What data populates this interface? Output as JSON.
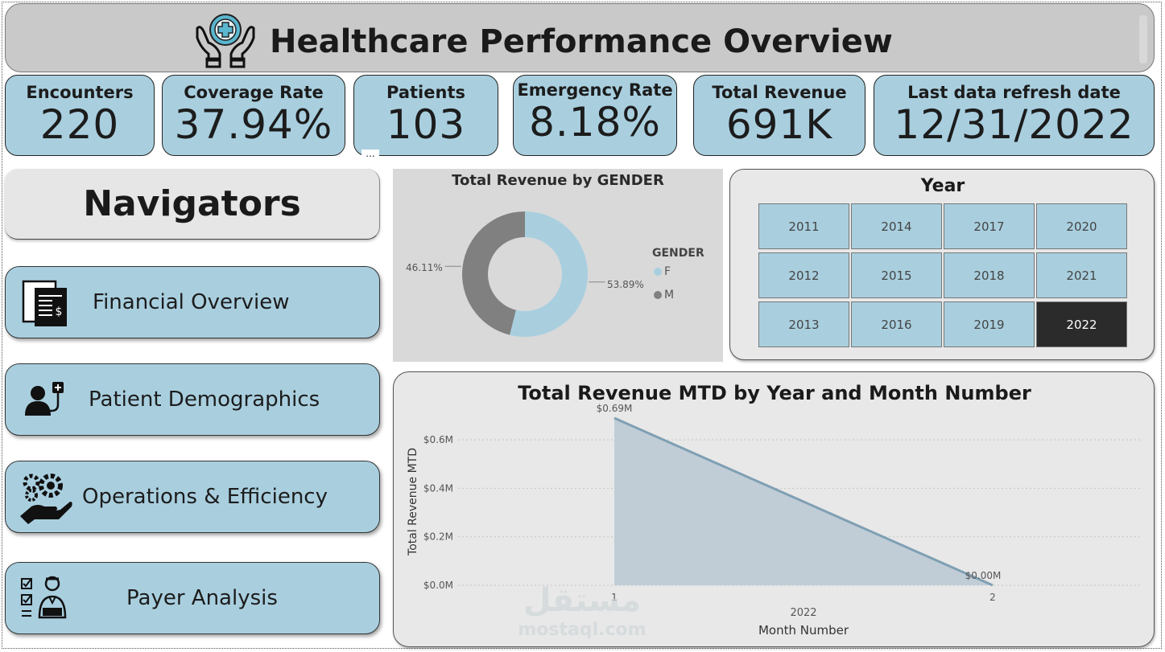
{
  "header": {
    "title": "Healthcare Performance Overview"
  },
  "kpis": {
    "encounters": {
      "label": "Encounters",
      "value": "220"
    },
    "coverage": {
      "label": "Coverage Rate",
      "value": "37.94%"
    },
    "patients": {
      "label": "Patients",
      "value": "103"
    },
    "emergency": {
      "label": "Emergency Rate",
      "value": "8.18%"
    },
    "revenue": {
      "label": "Total Revenue",
      "value": "691K"
    },
    "refresh": {
      "label": "Last data refresh date",
      "value": "12/31/2022"
    }
  },
  "more_options": "...",
  "nav": {
    "heading": "Navigators",
    "items": [
      {
        "label": "Financial Overview",
        "icon": "invoice-dollar-icon"
      },
      {
        "label": "Patient Demographics",
        "icon": "patient-stethoscope-icon"
      },
      {
        "label": "Operations & Efficiency",
        "icon": "gears-hand-icon"
      },
      {
        "label": "Payer Analysis",
        "icon": "checklist-person-icon"
      }
    ]
  },
  "year_slicer": {
    "title": "Year",
    "years": [
      "2011",
      "2014",
      "2017",
      "2020",
      "2012",
      "2015",
      "2018",
      "2021",
      "2013",
      "2016",
      "2019",
      "2022"
    ],
    "selected": "2022"
  },
  "colors": {
    "accent": "#a9cfdf",
    "female": "#a9cfdf",
    "male": "#808080",
    "area": "#c0cdd6",
    "line": "#7f9fb3",
    "selected": "#2b2b2b"
  },
  "watermark": {
    "text_ar": "مستقل",
    "text_en": "mostaql.com"
  },
  "chart_data": [
    {
      "type": "pie",
      "title": "Total Revenue by GENDER",
      "legend_title": "GENDER",
      "legend_position": "right",
      "categories": [
        "F",
        "M"
      ],
      "values": [
        53.89,
        46.11
      ],
      "labels": [
        "53.89%",
        "46.11%"
      ],
      "donut": true
    },
    {
      "type": "area",
      "title": "Total Revenue MTD by Year and Month Number",
      "xlabel": "Month Number",
      "ylabel": "Total Revenue MTD",
      "x_group_label": "2022",
      "x": [
        1,
        2
      ],
      "x_ticks": [
        "1",
        "2"
      ],
      "values": [
        0.69,
        0.0
      ],
      "data_labels": [
        "$0.69M",
        "$0.00M"
      ],
      "y_ticks": [
        "$0.0M",
        "$0.2M",
        "$0.4M",
        "$0.6M"
      ],
      "ylim": [
        0,
        0.69
      ],
      "grid": true
    }
  ]
}
